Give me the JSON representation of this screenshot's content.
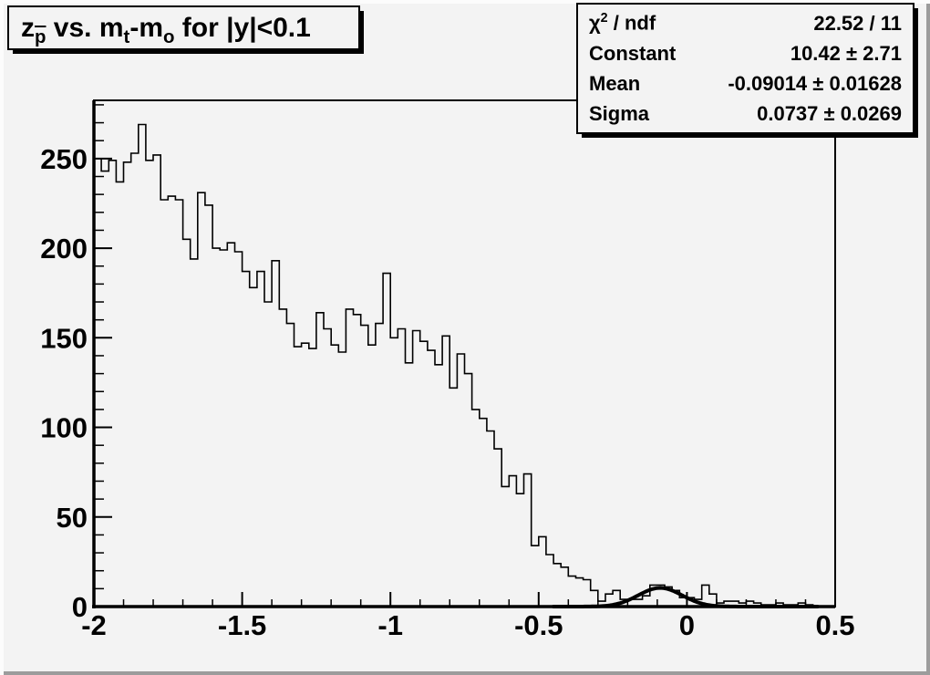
{
  "title": {
    "seg_z": "z",
    "seg_p": "p",
    "seg_vs": " vs. m",
    "seg_t": "t",
    "seg_m2": "-m",
    "seg_o": "o",
    "seg_rest": " for |y|<0.1"
  },
  "stats": {
    "chi": {
      "sym": "χ",
      "sup": "2",
      "rest": " / ndf"
    },
    "chi_value": "22.52 / 11",
    "rows": [
      {
        "label": "Constant",
        "value": "10.42 ± 2.71"
      },
      {
        "label": "Mean",
        "value": "-0.09014 ± 0.01628"
      },
      {
        "label": "Sigma",
        "value": "0.0737 ± 0.0269"
      }
    ]
  },
  "colors": {
    "canvas_bg": "#f3f3f3",
    "line": "#000000",
    "border_light": "#fcfcfc",
    "border_dark": "#9c9c9c"
  },
  "chart_data": {
    "type": "bar",
    "subtype": "step-histogram",
    "title": "z_pbar vs. m_t-m_o for |y|<0.1",
    "xlabel": "",
    "ylabel": "",
    "xlim": [
      -2,
      0.5
    ],
    "ylim": [
      0,
      282.5
    ],
    "grid": false,
    "x_start": -2,
    "bin_width": 0.025,
    "x_major_ticks": [
      -2,
      -1.5,
      -1,
      -0.5,
      0,
      0.5
    ],
    "x_tick_labels": [
      "-2",
      "-1.5",
      "-1",
      "-0.5",
      "0",
      "0.5"
    ],
    "x_minor_step": 0.1,
    "y_major_ticks": [
      0,
      50,
      100,
      150,
      200,
      250
    ],
    "y_tick_labels": [
      "0",
      "50",
      "100",
      "150",
      "200",
      "250"
    ],
    "y_minor_step": 10,
    "values": [
      250,
      243,
      249,
      237,
      248,
      253,
      269,
      249,
      252,
      227,
      229,
      227,
      205,
      194,
      231,
      224,
      200,
      199,
      203,
      198,
      187,
      178,
      187,
      170,
      193,
      166,
      158,
      145,
      147,
      144,
      164,
      155,
      146,
      142,
      166,
      163,
      157,
      146,
      158,
      186,
      150,
      155,
      136,
      154,
      148,
      143,
      135,
      151,
      122,
      141,
      130,
      110,
      105,
      98,
      88,
      67,
      73,
      63,
      74,
      34,
      39,
      29,
      24,
      22,
      17,
      16,
      15,
      9,
      3,
      7,
      9,
      4,
      4,
      4,
      6,
      12,
      12,
      11,
      9,
      5,
      5,
      4,
      12,
      7,
      2,
      3,
      3,
      2,
      3,
      2,
      1,
      1,
      2,
      1,
      1,
      2,
      1,
      0,
      0,
      0
    ],
    "fit": {
      "shape": "gaussian",
      "constant": 10.42,
      "mean": -0.09014,
      "sigma": 0.0737,
      "draw_range": [
        -0.45,
        0.44
      ]
    }
  }
}
